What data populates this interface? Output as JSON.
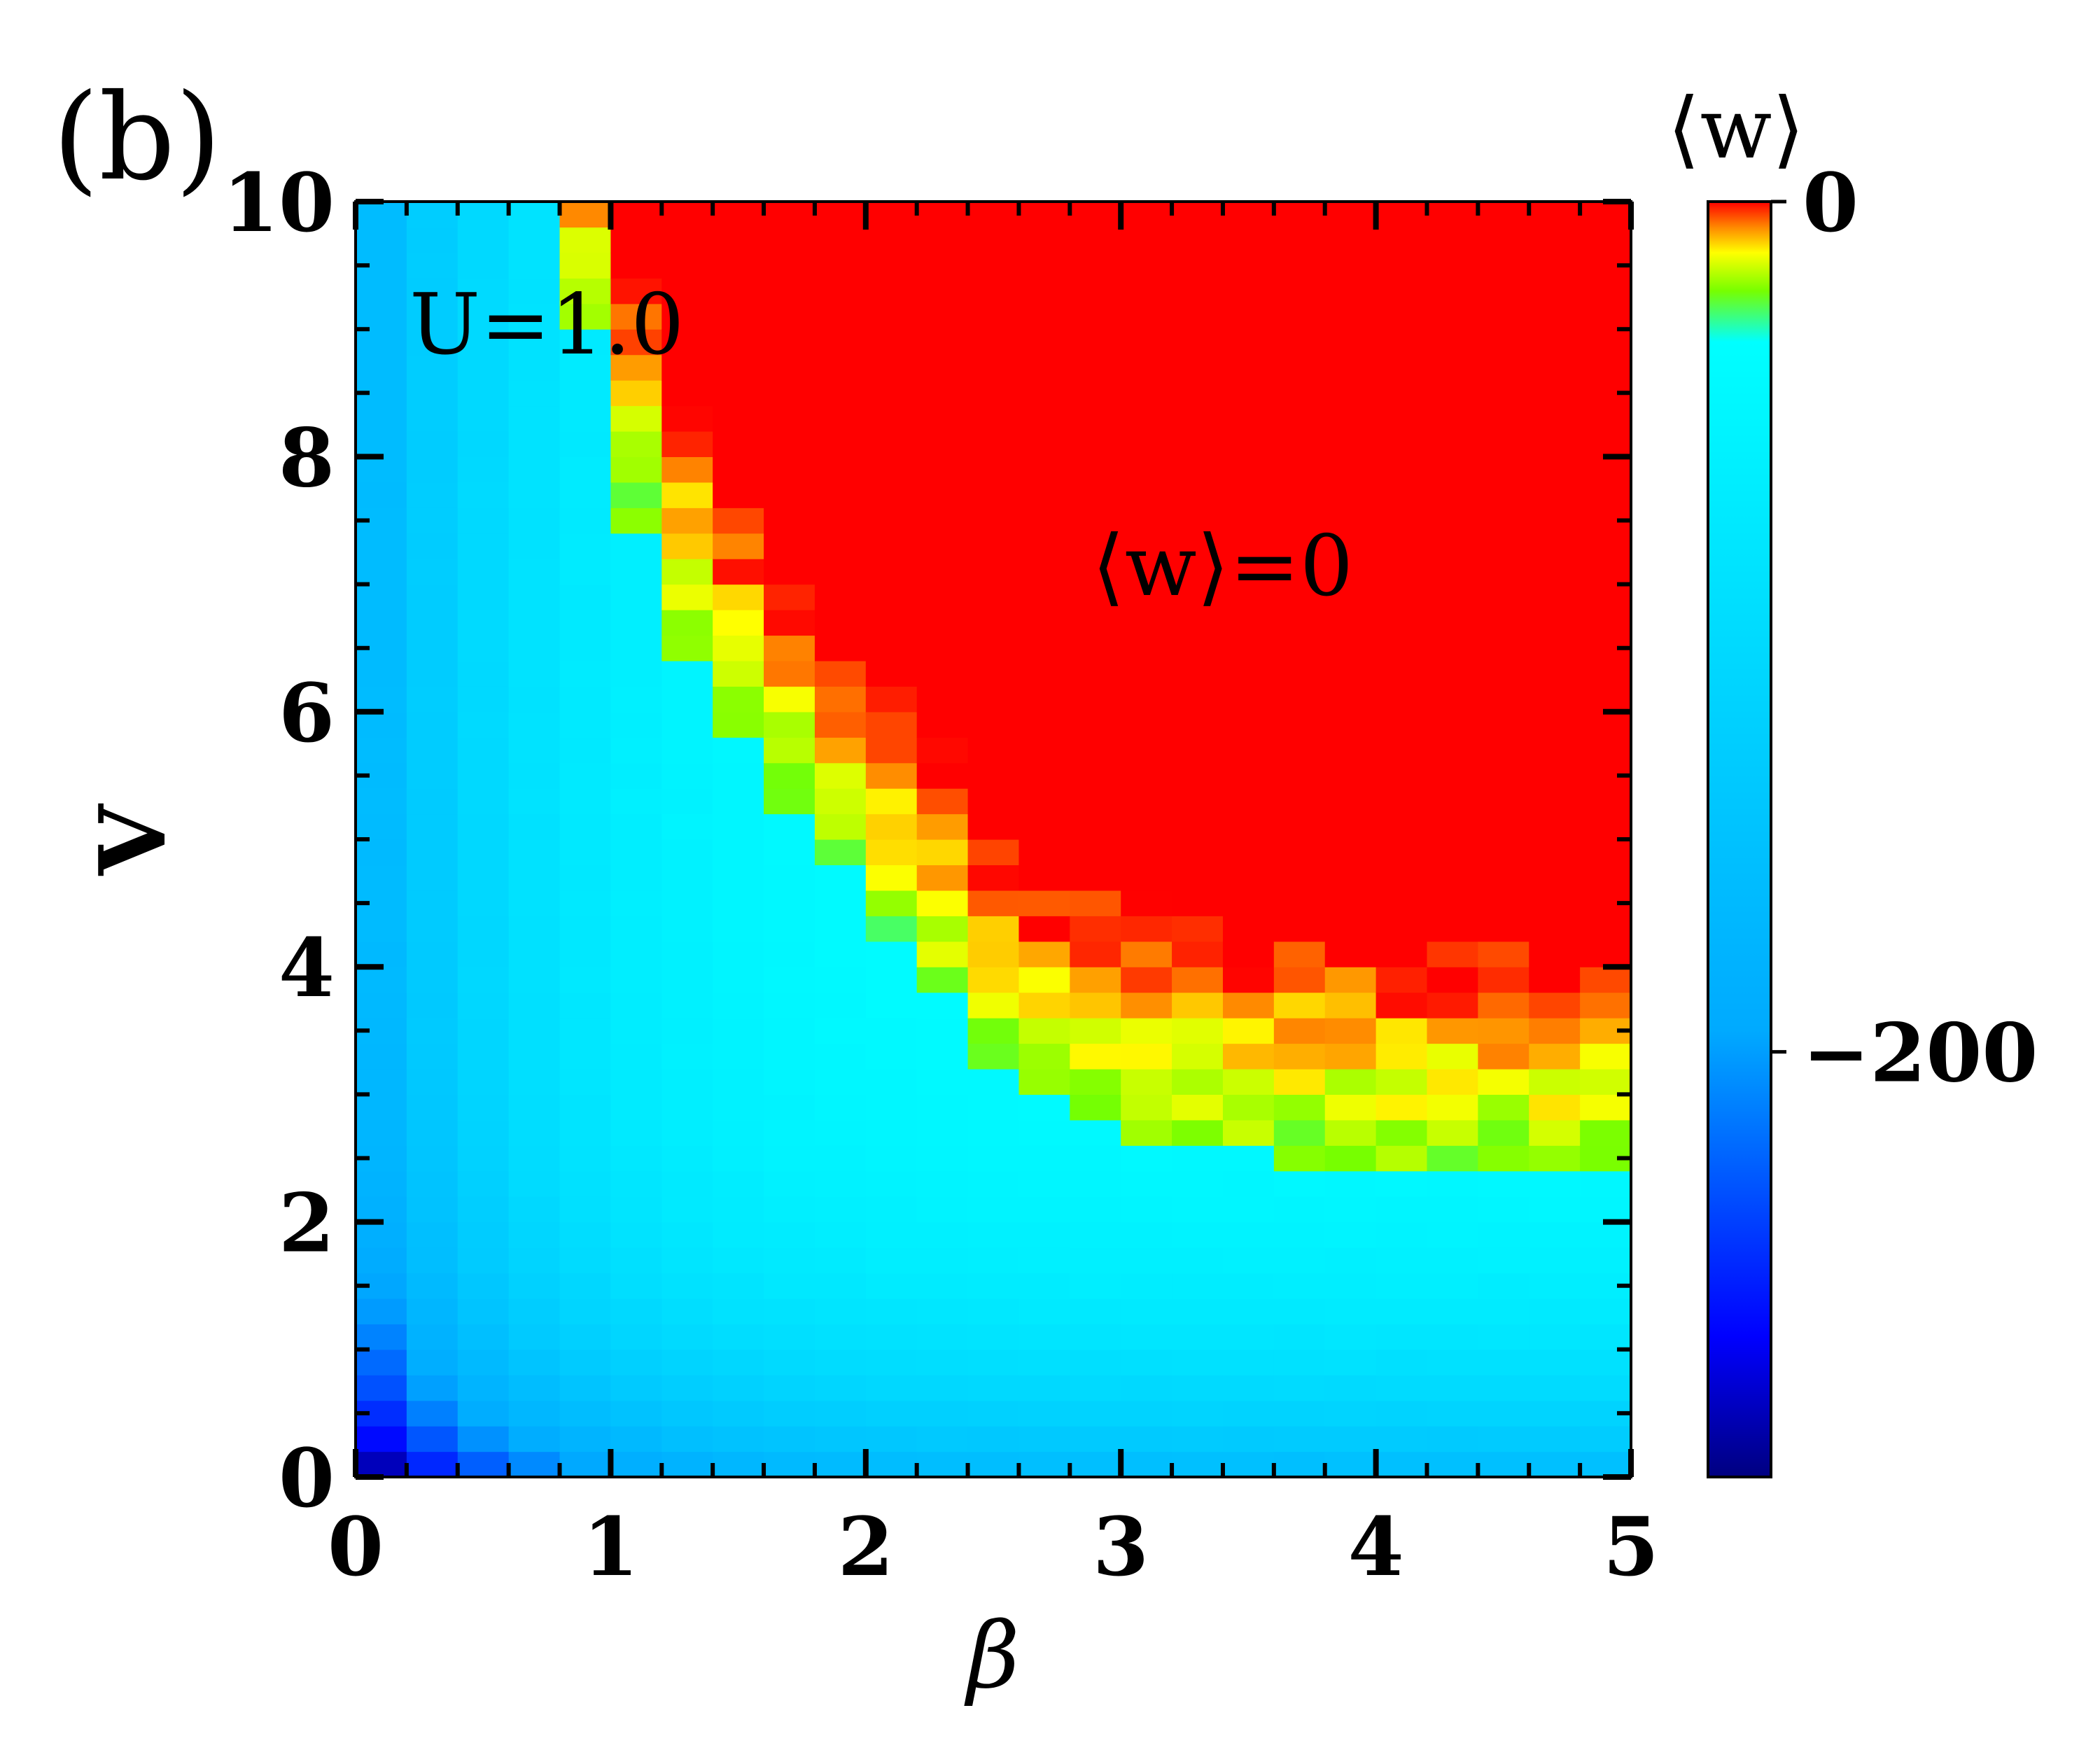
{
  "panel_label": "(b)",
  "colorbar": {
    "title": "⟨w⟩",
    "tick_labels": [
      "0",
      "−200"
    ],
    "tick_values": [
      0,
      -200
    ],
    "range": [
      -300,
      0
    ]
  },
  "annotations": {
    "u_label": "U=1.0",
    "region_label": "⟨w⟩=0"
  },
  "chart_data": {
    "type": "heatmap",
    "title": "",
    "xlabel": "β",
    "ylabel": "V",
    "xlim": [
      0,
      5
    ],
    "ylim": [
      0,
      10
    ],
    "x_ticks": [
      0,
      1,
      2,
      3,
      4,
      5
    ],
    "y_ticks": [
      0,
      2,
      4,
      6,
      8,
      10
    ],
    "x_tick_labels": [
      "0",
      "1",
      "2",
      "3",
      "4",
      "5"
    ],
    "y_tick_labels": [
      "0",
      "2",
      "4",
      "6",
      "8",
      "10"
    ],
    "grid": false,
    "z_label": "⟨w⟩",
    "z_range": [
      -300,
      0
    ],
    "colormap": "jet",
    "grid_resolution": {
      "beta_cells": 25,
      "v_cells": 50
    },
    "description": "⟨w⟩ as a function of β and V; ⟨w⟩ ≈ 0 in the upper-right region, strongly negative at small β and small V",
    "boundary_points": [
      {
        "beta": 0.8,
        "V": 10.0
      },
      {
        "beta": 0.9,
        "V": 9.0
      },
      {
        "beta": 1.0,
        "V": 8.0
      },
      {
        "beta": 1.2,
        "V": 7.0
      },
      {
        "beta": 1.4,
        "V": 6.0
      },
      {
        "beta": 1.8,
        "V": 5.0
      },
      {
        "beta": 2.0,
        "V": 4.5
      },
      {
        "beta": 2.2,
        "V": 4.0
      },
      {
        "beta": 2.4,
        "V": 3.5
      },
      {
        "beta": 2.6,
        "V": 3.0
      },
      {
        "beta": 3.2,
        "V": 2.6
      },
      {
        "beta": 4.0,
        "V": 2.4
      },
      {
        "beta": 5.0,
        "V": 2.3
      }
    ]
  }
}
